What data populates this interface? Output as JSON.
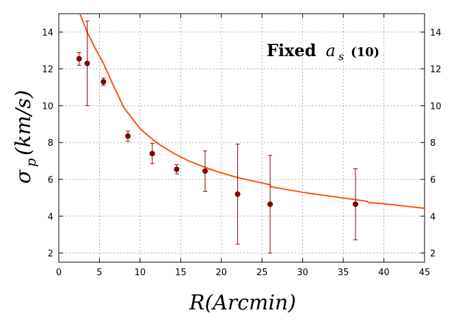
{
  "chart_data": {
    "type": "scatter",
    "title_bold": "Fixed",
    "title_symbol": "a",
    "title_sub": "s",
    "title_suffix": "(10)",
    "xlabel": "R(Arcmin)",
    "ylabel_symbol": "σ",
    "ylabel_sub": "p",
    "ylabel_rest": "(km/s)",
    "xlim": [
      0,
      45
    ],
    "ylim": [
      1.5,
      15
    ],
    "x_ticks": [
      0,
      5,
      10,
      15,
      20,
      25,
      30,
      35,
      40,
      45
    ],
    "y_ticks": [
      2,
      4,
      6,
      8,
      10,
      12,
      14
    ],
    "grid": true,
    "colors": {
      "points": "#8b0000",
      "errorbars": "#8b0000",
      "model": "#ff5000"
    },
    "series": [
      {
        "kind": "points-with-errorbars",
        "points": [
          {
            "x": 2.5,
            "y": 12.55,
            "err": 0.35
          },
          {
            "x": 3.5,
            "y": 12.3,
            "err": 2.3
          },
          {
            "x": 5.5,
            "y": 11.3,
            "err": 0.2
          },
          {
            "x": 8.5,
            "y": 8.35,
            "err": 0.28
          },
          {
            "x": 11.5,
            "y": 7.4,
            "err": 0.55
          },
          {
            "x": 14.5,
            "y": 6.55,
            "err": 0.25
          },
          {
            "x": 18.0,
            "y": 6.45,
            "err": 1.1
          },
          {
            "x": 22.0,
            "y": 5.2,
            "err": 2.72
          },
          {
            "x": 26.0,
            "y": 4.65,
            "err": 2.65
          },
          {
            "x": 36.5,
            "y": 4.65,
            "err": 1.93
          }
        ]
      },
      {
        "kind": "model-curve",
        "x": [
          2.6,
          3.5,
          4.5,
          5.5,
          6.5,
          8,
          10,
          12,
          14,
          16,
          18,
          20,
          22,
          24,
          25.9,
          26.1,
          28,
          30,
          32,
          34,
          36,
          37.9,
          38.1,
          40,
          42,
          45
        ],
        "y": [
          15.0,
          14.0,
          13.1,
          12.3,
          11.3,
          9.9,
          8.75,
          8.0,
          7.45,
          7.0,
          6.65,
          6.35,
          6.1,
          5.9,
          5.72,
          5.6,
          5.45,
          5.3,
          5.17,
          5.05,
          4.93,
          4.81,
          4.75,
          4.67,
          4.58,
          4.43
        ]
      }
    ]
  }
}
